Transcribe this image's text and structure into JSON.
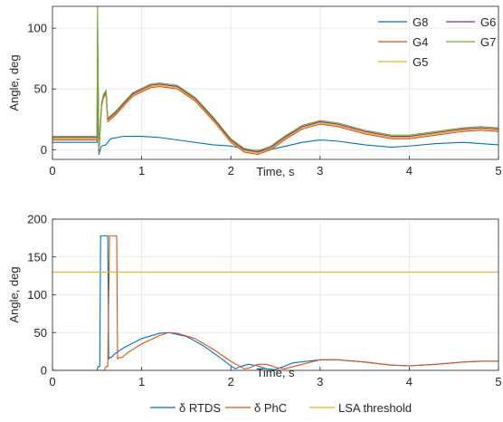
{
  "chart_data": [
    {
      "type": "line",
      "xlabel": "Time, s",
      "ylabel": "Angle, deg",
      "xlim": [
        0,
        5
      ],
      "ylim": [
        -8,
        118
      ],
      "xticks": [
        "0",
        "1",
        "2",
        "3",
        "4",
        "5"
      ],
      "yticks": [
        "0",
        "50",
        "100"
      ],
      "grid": true,
      "legend": {
        "placement": "top-right",
        "columns": 2
      },
      "series": [
        {
          "name": "G8",
          "color": "#0072BD",
          "x": [
            0,
            0.5,
            0.505,
            0.52,
            0.55,
            0.6,
            0.65,
            0.8,
            1.0,
            1.2,
            1.5,
            1.8,
            2.0,
            2.2,
            2.35,
            2.5,
            2.8,
            3.0,
            3.2,
            3.5,
            3.8,
            4.0,
            4.3,
            4.6,
            4.8,
            5.0
          ],
          "y": [
            6,
            6,
            40,
            -4,
            3,
            4,
            9,
            11,
            11,
            10,
            7,
            4,
            3,
            0,
            -1,
            1,
            6,
            8,
            7,
            4,
            2,
            3,
            5,
            6,
            5,
            4
          ]
        },
        {
          "name": "G4",
          "color": "#D95319",
          "x": [
            0,
            0.5,
            0.505,
            0.52,
            0.55,
            0.57,
            0.6,
            0.62,
            0.7,
            0.9,
            1.1,
            1.2,
            1.4,
            1.6,
            1.8,
            2.0,
            2.15,
            2.3,
            2.45,
            2.6,
            2.8,
            3.0,
            3.2,
            3.5,
            3.8,
            4.0,
            4.3,
            4.6,
            4.8,
            5.0
          ],
          "y": [
            8,
            8,
            98,
            -3,
            35,
            42,
            46,
            23,
            28,
            44,
            51,
            52,
            50,
            40,
            24,
            6,
            -2,
            -4,
            0,
            8,
            17,
            21,
            19,
            13,
            9,
            9,
            12,
            15,
            16,
            15
          ]
        },
        {
          "name": "G5",
          "color": "#EDB120",
          "x": [
            0,
            0.5,
            0.505,
            0.52,
            0.55,
            0.57,
            0.6,
            0.62,
            0.7,
            0.9,
            1.1,
            1.2,
            1.4,
            1.6,
            1.8,
            2.0,
            2.15,
            2.3,
            2.45,
            2.6,
            2.8,
            3.0,
            3.2,
            3.5,
            3.8,
            4.0,
            4.3,
            4.6,
            4.8,
            5.0
          ],
          "y": [
            9,
            9,
            99,
            -2,
            36,
            43,
            47,
            24,
            29,
            45,
            52,
            53,
            51,
            41,
            25,
            7,
            -1,
            -3,
            1,
            9,
            18,
            22,
            20,
            14,
            10,
            10,
            13,
            16,
            17,
            16
          ]
        },
        {
          "name": "G6",
          "color": "#7E2F8E",
          "x": [
            0,
            0.5,
            0.505,
            0.52,
            0.55,
            0.57,
            0.6,
            0.62,
            0.7,
            0.9,
            1.1,
            1.2,
            1.4,
            1.6,
            1.8,
            2.0,
            2.15,
            2.3,
            2.45,
            2.6,
            2.8,
            3.0,
            3.2,
            3.5,
            3.8,
            4.0,
            4.3,
            4.6,
            4.8,
            5.0
          ],
          "y": [
            10,
            10,
            100,
            -1,
            37,
            44,
            48,
            25,
            30,
            46,
            53,
            54,
            52,
            42,
            26,
            8,
            0,
            -2,
            2,
            10,
            19,
            23,
            21,
            15,
            11,
            11,
            14,
            17,
            18,
            17
          ]
        },
        {
          "name": "G7",
          "color": "#77AC30",
          "x": [
            0,
            0.5,
            0.505,
            0.52,
            0.55,
            0.57,
            0.6,
            0.62,
            0.7,
            0.9,
            1.1,
            1.2,
            1.4,
            1.6,
            1.8,
            2.0,
            2.15,
            2.3,
            2.45,
            2.6,
            2.8,
            3.0,
            3.2,
            3.5,
            3.8,
            4.0,
            4.3,
            4.6,
            4.8,
            5.0
          ],
          "y": [
            11,
            11,
            120,
            0,
            38,
            45,
            49,
            26,
            31,
            47,
            54,
            55,
            53,
            43,
            27,
            9,
            1,
            -1,
            3,
            11,
            20,
            24,
            22,
            16,
            12,
            12,
            15,
            18,
            19,
            18
          ]
        }
      ]
    },
    {
      "type": "line",
      "xlabel": "Time, s",
      "ylabel": "Angle, deg",
      "xlim": [
        0,
        5
      ],
      "ylim": [
        0,
        200
      ],
      "xticks": [
        "0",
        "1",
        "2",
        "3",
        "4",
        "5"
      ],
      "yticks": [
        "0",
        "50",
        "100",
        "150",
        "200"
      ],
      "grid": true,
      "legend": {
        "placement": "bottom",
        "columns": 3
      },
      "series": [
        {
          "name": "δ RTDS",
          "color": "#0072BD",
          "x": [
            0,
            0.5,
            0.51,
            0.53,
            0.54,
            0.56,
            0.62,
            0.63,
            0.64,
            0.66,
            0.7,
            0.8,
            1.0,
            1.2,
            1.3,
            1.5,
            1.7,
            1.9,
            2.0,
            2.05,
            2.1,
            2.2,
            2.3,
            2.4,
            2.5,
            2.7,
            3.0,
            3.2,
            3.5,
            3.8,
            4.0,
            4.3,
            4.6,
            4.8,
            5.0
          ],
          "y": [
            0,
            0,
            5,
            5,
            178,
            178,
            178,
            15,
            17,
            17,
            22,
            30,
            42,
            49,
            50,
            45,
            32,
            15,
            6,
            2,
            5,
            8,
            6,
            2,
            1,
            10,
            14,
            14,
            11,
            7,
            6,
            8,
            11,
            12,
            12
          ]
        },
        {
          "name": "δ PhC",
          "color": "#D95319",
          "x": [
            0,
            0.58,
            0.6,
            0.62,
            0.64,
            0.66,
            0.72,
            0.73,
            0.75,
            0.78,
            0.85,
            1.0,
            1.2,
            1.3,
            1.4,
            1.6,
            1.8,
            2.0,
            2.15,
            2.2,
            2.3,
            2.4,
            2.5,
            2.6,
            2.8,
            3.0,
            3.2,
            3.5,
            3.8,
            4.0,
            4.3,
            4.6,
            4.8,
            5.0
          ],
          "y": [
            0,
            0,
            5,
            5,
            178,
            178,
            178,
            15,
            17,
            17,
            24,
            35,
            46,
            50,
            49,
            42,
            28,
            12,
            2,
            3,
            8,
            8,
            4,
            2,
            8,
            14,
            14,
            11,
            7,
            6,
            8,
            11,
            12,
            12
          ]
        },
        {
          "name": "LSA threshold",
          "color": "#EDB120",
          "x": [
            0,
            5
          ],
          "y": [
            130,
            130
          ]
        }
      ]
    }
  ]
}
